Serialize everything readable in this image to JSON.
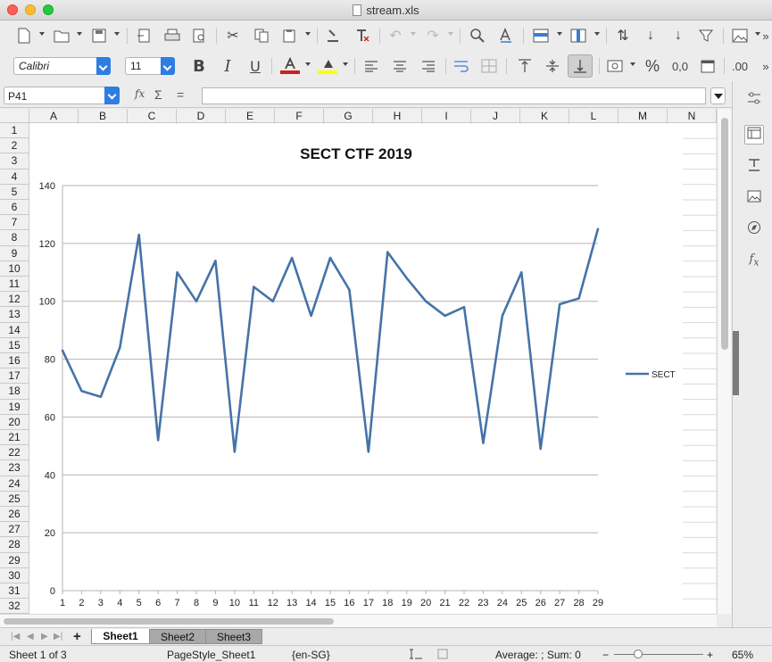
{
  "window": {
    "title": "stream.xls"
  },
  "toolbar": {
    "font_name": "Calibri",
    "font_size": "11",
    "bold_label": "B",
    "italic_label": "I",
    "underline_label": "U",
    "percent_label": "%",
    "decimal_label": "0,0",
    "more_label": "»",
    "more_label2": "»",
    "add_decimal_label": ".00"
  },
  "formula_bar": {
    "cell_ref": "P41",
    "fx_label": "fx",
    "sum_label": "Σ",
    "eq_label": "=",
    "formula": ""
  },
  "columns": [
    "A",
    "B",
    "C",
    "D",
    "E",
    "F",
    "G",
    "H",
    "I",
    "J",
    "K",
    "L",
    "M",
    "N"
  ],
  "rows": [
    "1",
    "2",
    "3",
    "4",
    "5",
    "6",
    "7",
    "8",
    "9",
    "10",
    "11",
    "12",
    "13",
    "14",
    "15",
    "16",
    "17",
    "18",
    "19",
    "20",
    "21",
    "22",
    "23",
    "24",
    "25",
    "26",
    "27",
    "28",
    "29",
    "30",
    "31",
    "32"
  ],
  "chart_data": {
    "type": "line",
    "title": "SECT CTF 2019",
    "x": [
      1,
      2,
      3,
      4,
      5,
      6,
      7,
      8,
      9,
      10,
      11,
      12,
      13,
      14,
      15,
      16,
      17,
      18,
      19,
      20,
      21,
      22,
      23,
      24,
      25,
      26,
      27,
      28,
      29
    ],
    "series": [
      {
        "name": "SECT",
        "color": "#4673a8",
        "values": [
          83,
          69,
          67,
          84,
          123,
          52,
          110,
          100,
          114,
          48,
          105,
          100,
          115,
          95,
          115,
          104,
          48,
          117,
          108,
          100,
          95,
          98,
          51,
          95,
          110,
          49,
          99,
          101,
          125
        ]
      }
    ],
    "ylim": [
      0,
      140
    ],
    "yticks": [
      0,
      20,
      40,
      60,
      80,
      100,
      120,
      140
    ],
    "grid": true,
    "legend_position": "right"
  },
  "sheets": [
    {
      "label": "Sheet1",
      "active": true
    },
    {
      "label": "Sheet2",
      "active": false
    },
    {
      "label": "Sheet3",
      "active": false
    }
  ],
  "add_sheet_label": "+",
  "status": {
    "sheet_info": "Sheet 1 of 3",
    "page_style": "PageStyle_Sheet1",
    "locale": "{en-SG}",
    "aggregate": "Average: ; Sum: 0",
    "zoom_minus": "−",
    "zoom_plus": "+",
    "zoom": "65%"
  }
}
